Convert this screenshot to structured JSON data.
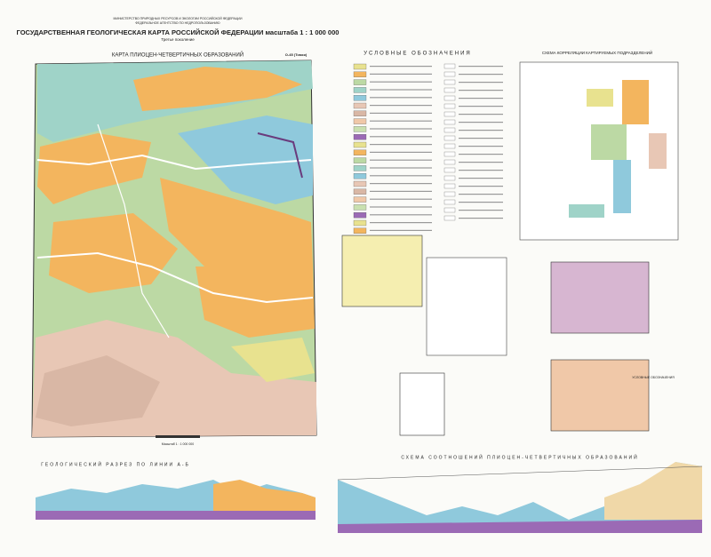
{
  "header": {
    "ministry": "МИНИСТЕРСТВО ПРИРОДНЫХ РЕСУРСОВ И ЭКОЛОГИИ РОССИЙСКОЙ ФЕДЕРАЦИИ",
    "agency": "ФЕДЕРАЛЬНОЕ АГЕНТСТВО ПО НЕДРОПОЛЬЗОВАНИЮ",
    "title": "ГОСУДАРСТВЕННАЯ ГЕОЛОГИЧЕСКАЯ КАРТА РОССИЙСКОЙ ФЕДЕРАЦИИ масштаба 1 : 1 000 000",
    "generation": "Третье поколение"
  },
  "map": {
    "title": "КАРТА ПЛИОЦЕН-ЧЕТВЕРТИЧНЫХ ОБРАЗОВАНИЙ",
    "sheet": "O-45 (Томск)",
    "scale": "Масштаб 1 : 1 000 000"
  },
  "legend": {
    "title": "УСЛОВНЫЕ ОБОЗНАЧЕНИЯ"
  },
  "correlation": {
    "title": "СХЕМА КОРРЕЛЯЦИИ КАРТИРУЕМЫХ ПОДРАЗДЕЛЕНИЙ"
  },
  "section": {
    "title": "ГЕОЛОГИЧЕСКИЙ РАЗРЕЗ ПО ЛИНИИ А-Б"
  },
  "relations": {
    "title": "СХЕМА СООТНОШЕНИЙ ПЛИОЦЕН-ЧЕТВЕРТИЧНЫХ ОБРАЗОВАНИЙ",
    "legend": "УСЛОВНЫЕ ОБОЗНАЧЕНИЯ"
  }
}
